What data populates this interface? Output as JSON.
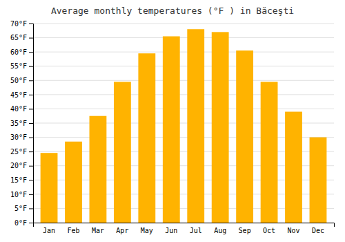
{
  "chart_data": {
    "type": "bar",
    "title": "Average monthly temperatures (°F ) in Băceşti",
    "categories": [
      "Jan",
      "Feb",
      "Mar",
      "Apr",
      "May",
      "Jun",
      "Jul",
      "Aug",
      "Sep",
      "Oct",
      "Nov",
      "Dec"
    ],
    "values": [
      24.5,
      28.5,
      37.5,
      49.5,
      59.5,
      65.5,
      68.0,
      67.0,
      60.5,
      49.5,
      39.0,
      30.0
    ],
    "color": "#FFB300",
    "ylim": [
      0,
      70
    ],
    "yticks": [
      {
        "value": 0,
        "label": "0°F"
      },
      {
        "value": 5,
        "label": "5°F"
      },
      {
        "value": 10,
        "label": "10°F"
      },
      {
        "value": 15,
        "label": "15°F"
      },
      {
        "value": 20,
        "label": "20°F"
      },
      {
        "value": 25,
        "label": "25°F"
      },
      {
        "value": 30,
        "label": "30°F"
      },
      {
        "value": 35,
        "label": "35°F"
      },
      {
        "value": 40,
        "label": "40°F"
      },
      {
        "value": 45,
        "label": "45°F"
      },
      {
        "value": 50,
        "label": "50°F"
      },
      {
        "value": 55,
        "label": "55°F"
      },
      {
        "value": 60,
        "label": "60°F"
      },
      {
        "value": 65,
        "label": "65°F"
      },
      {
        "value": 70,
        "label": "70°F"
      }
    ],
    "grid": true
  }
}
